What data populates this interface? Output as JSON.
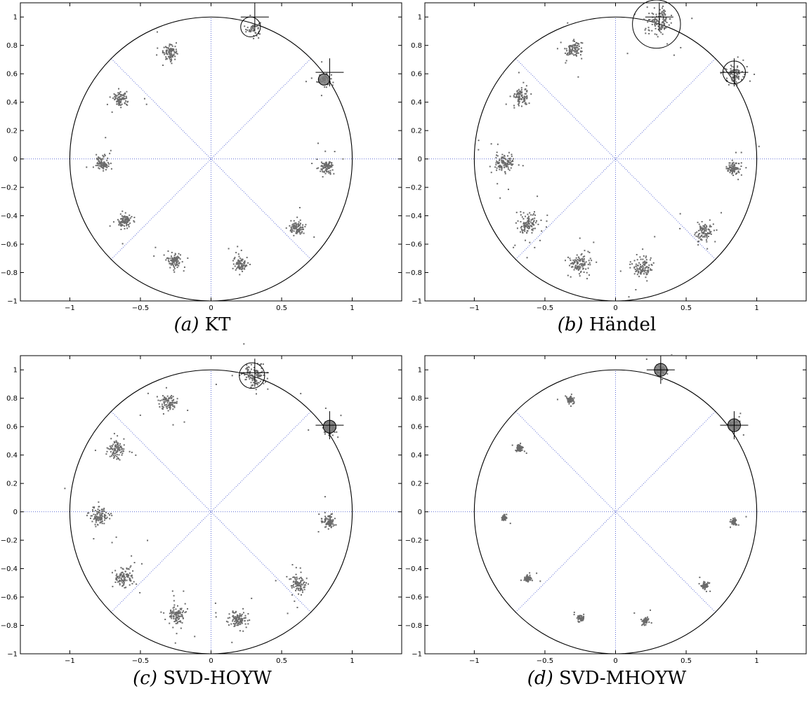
{
  "chart_data": [
    {
      "type": "scatter",
      "caption_letter": "(a)",
      "caption_text": "KT",
      "xlim": [
        -1.35,
        1.35
      ],
      "ylim": [
        -1,
        1.1
      ],
      "xticks": [
        -1,
        -0.5,
        0,
        0.5,
        1
      ],
      "xtick_labels": [
        "−1",
        "−0.5",
        "0",
        "0.5",
        "1"
      ],
      "yticks": [
        -1,
        -0.8,
        -0.6,
        -0.4,
        -0.2,
        0,
        0.2,
        0.4,
        0.6,
        0.8,
        1
      ],
      "ytick_labels": [
        "−1",
        "−0.8",
        "−0.6",
        "−0.4",
        "−0.2",
        "0",
        "0.2",
        "0.4",
        "0.6",
        "0.8",
        "1"
      ],
      "unit_circle_radius": 1,
      "dotted_lines": "radial lines every 45°",
      "clusters": [
        {
          "x": 0.3,
          "y": 0.92,
          "spread": 0.025,
          "n": 45
        },
        {
          "x": 0.8,
          "y": 0.56,
          "spread": 0.025,
          "n": 45
        },
        {
          "x": -0.29,
          "y": 0.75,
          "spread": 0.025,
          "n": 90
        },
        {
          "x": -0.64,
          "y": 0.42,
          "spread": 0.025,
          "n": 90
        },
        {
          "x": -0.77,
          "y": -0.03,
          "spread": 0.022,
          "n": 90
        },
        {
          "x": -0.61,
          "y": -0.44,
          "spread": 0.025,
          "n": 90
        },
        {
          "x": -0.26,
          "y": -0.71,
          "spread": 0.025,
          "n": 90
        },
        {
          "x": 0.21,
          "y": -0.74,
          "spread": 0.025,
          "n": 90
        },
        {
          "x": 0.61,
          "y": -0.49,
          "spread": 0.025,
          "n": 90
        },
        {
          "x": 0.82,
          "y": -0.06,
          "spread": 0.022,
          "n": 90
        }
      ],
      "estimates": [
        {
          "x": 0.28,
          "y": 0.93,
          "radius": 0.07,
          "filled": false
        },
        {
          "x": 0.8,
          "y": 0.56,
          "radius": 0.04,
          "filled": true
        }
      ],
      "true_values": [
        {
          "x": 0.31,
          "y": 1.0
        },
        {
          "x": 0.84,
          "y": 0.61
        }
      ]
    },
    {
      "type": "scatter",
      "caption_letter": "(b)",
      "caption_text": "Händel",
      "xlim": [
        -1.35,
        1.35
      ],
      "ylim": [
        -1,
        1.1
      ],
      "xticks": [
        -1,
        -0.5,
        0,
        0.5,
        1
      ],
      "xtick_labels": [
        "−1",
        "−0.5",
        "0",
        "0.5",
        "1"
      ],
      "yticks": [
        -1,
        -0.8,
        -0.6,
        -0.4,
        -0.2,
        0,
        0.2,
        0.4,
        0.6,
        0.8,
        1
      ],
      "ytick_labels": [
        "−1",
        "−0.8",
        "−0.6",
        "−0.4",
        "−0.2",
        "0",
        "0.2",
        "0.4",
        "0.6",
        "0.8",
        "1"
      ],
      "unit_circle_radius": 1,
      "dotted_lines": "radial lines every 45°",
      "clusters": [
        {
          "x": 0.31,
          "y": 0.97,
          "spread": 0.045,
          "n": 120
        },
        {
          "x": 0.84,
          "y": 0.6,
          "spread": 0.03,
          "n": 90
        },
        {
          "x": -0.3,
          "y": 0.77,
          "spread": 0.03,
          "n": 90
        },
        {
          "x": -0.67,
          "y": 0.44,
          "spread": 0.03,
          "n": 90
        },
        {
          "x": -0.79,
          "y": -0.03,
          "spread": 0.035,
          "n": 110
        },
        {
          "x": -0.62,
          "y": -0.46,
          "spread": 0.035,
          "n": 110
        },
        {
          "x": -0.25,
          "y": -0.74,
          "spread": 0.035,
          "n": 100
        },
        {
          "x": 0.19,
          "y": -0.76,
          "spread": 0.035,
          "n": 100
        },
        {
          "x": 0.63,
          "y": -0.51,
          "spread": 0.03,
          "n": 90
        },
        {
          "x": 0.84,
          "y": -0.07,
          "spread": 0.025,
          "n": 90
        }
      ],
      "estimates": [
        {
          "x": 0.29,
          "y": 0.95,
          "radius": 0.17,
          "filled": false
        },
        {
          "x": 0.84,
          "y": 0.61,
          "radius": 0.08,
          "filled": false
        }
      ],
      "true_values": [
        {
          "x": 0.31,
          "y": 1.0
        },
        {
          "x": 0.84,
          "y": 0.61
        }
      ]
    },
    {
      "type": "scatter",
      "caption_letter": "(c)",
      "caption_text": "SVD-HOYW",
      "xlim": [
        -1.35,
        1.35
      ],
      "ylim": [
        -1,
        1.1
      ],
      "xticks": [
        -1,
        -0.5,
        0,
        0.5,
        1
      ],
      "xtick_labels": [
        "−1",
        "−0.5",
        "0",
        "0.5",
        "1"
      ],
      "yticks": [
        -1,
        -0.8,
        -0.6,
        -0.4,
        -0.2,
        0,
        0.2,
        0.4,
        0.6,
        0.8,
        1
      ],
      "ytick_labels": [
        "−1",
        "−0.8",
        "−0.6",
        "−0.4",
        "−0.2",
        "0",
        "0.2",
        "0.4",
        "0.6",
        "0.8",
        "1"
      ],
      "unit_circle_radius": 1,
      "dotted_lines": "radial lines every 45°",
      "clusters": [
        {
          "x": 0.31,
          "y": 0.96,
          "spread": 0.04,
          "n": 110
        },
        {
          "x": 0.84,
          "y": 0.59,
          "spread": 0.025,
          "n": 80
        },
        {
          "x": -0.3,
          "y": 0.77,
          "spread": 0.03,
          "n": 90
        },
        {
          "x": -0.67,
          "y": 0.44,
          "spread": 0.03,
          "n": 90
        },
        {
          "x": -0.79,
          "y": -0.03,
          "spread": 0.03,
          "n": 100
        },
        {
          "x": -0.62,
          "y": -0.46,
          "spread": 0.035,
          "n": 100
        },
        {
          "x": -0.25,
          "y": -0.73,
          "spread": 0.03,
          "n": 100
        },
        {
          "x": 0.19,
          "y": -0.76,
          "spread": 0.03,
          "n": 100
        },
        {
          "x": 0.62,
          "y": -0.51,
          "spread": 0.03,
          "n": 90
        },
        {
          "x": 0.83,
          "y": -0.07,
          "spread": 0.025,
          "n": 90
        }
      ],
      "estimates": [
        {
          "x": 0.29,
          "y": 0.96,
          "radius": 0.09,
          "filled": false
        },
        {
          "x": 0.84,
          "y": 0.6,
          "radius": 0.045,
          "filled": true
        }
      ],
      "true_values": [
        {
          "x": 0.31,
          "y": 0.98
        },
        {
          "x": 0.84,
          "y": 0.61
        }
      ]
    },
    {
      "type": "scatter",
      "caption_letter": "(d)",
      "caption_text": "SVD-MHOYW",
      "xlim": [
        -1.35,
        1.35
      ],
      "ylim": [
        -1,
        1.1
      ],
      "xticks": [
        -1,
        -0.5,
        0,
        0.5,
        1
      ],
      "xtick_labels": [
        "−1",
        "−0.5",
        "0",
        "0.5",
        "1"
      ],
      "yticks": [
        -1,
        -0.8,
        -0.6,
        -0.4,
        -0.2,
        0,
        0.2,
        0.4,
        0.6,
        0.8,
        1
      ],
      "ytick_labels": [
        "−1",
        "−0.8",
        "−0.6",
        "−0.4",
        "−0.2",
        "0",
        "0.2",
        "0.4",
        "0.6",
        "0.8",
        "1"
      ],
      "unit_circle_radius": 1,
      "dotted_lines": "radial lines every 45°",
      "clusters": [
        {
          "x": 0.32,
          "y": 1.0,
          "spread": 0.02,
          "n": 50
        },
        {
          "x": 0.84,
          "y": 0.61,
          "spread": 0.02,
          "n": 50
        },
        {
          "x": -0.32,
          "y": 0.79,
          "spread": 0.012,
          "n": 60
        },
        {
          "x": -0.68,
          "y": 0.45,
          "spread": 0.012,
          "n": 60
        },
        {
          "x": -0.79,
          "y": -0.04,
          "spread": 0.01,
          "n": 55
        },
        {
          "x": -0.62,
          "y": -0.47,
          "spread": 0.012,
          "n": 60
        },
        {
          "x": -0.25,
          "y": -0.75,
          "spread": 0.012,
          "n": 60
        },
        {
          "x": 0.21,
          "y": -0.77,
          "spread": 0.012,
          "n": 60
        },
        {
          "x": 0.63,
          "y": -0.52,
          "spread": 0.012,
          "n": 60
        },
        {
          "x": 0.84,
          "y": -0.07,
          "spread": 0.01,
          "n": 55
        }
      ],
      "estimates": [
        {
          "x": 0.32,
          "y": 1.0,
          "radius": 0.045,
          "filled": true
        },
        {
          "x": 0.84,
          "y": 0.61,
          "radius": 0.045,
          "filled": true
        }
      ],
      "true_values": [
        {
          "x": 0.32,
          "y": 1.0
        },
        {
          "x": 0.84,
          "y": 0.61
        }
      ]
    }
  ]
}
